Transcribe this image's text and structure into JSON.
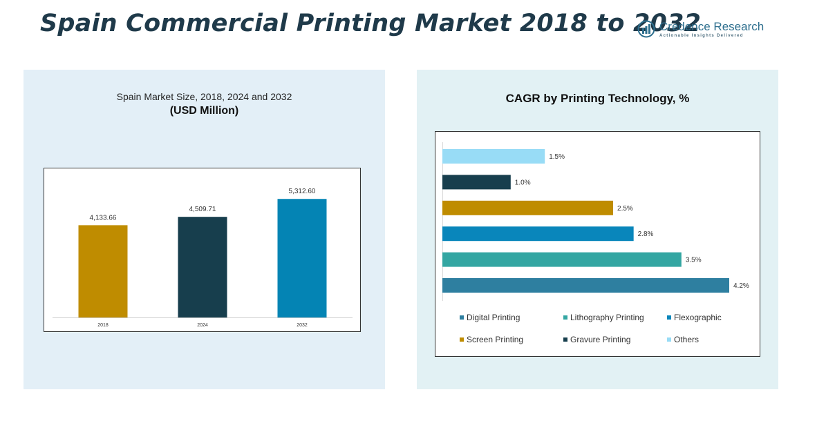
{
  "header": {
    "title": "Spain Commercial Printing Market 2018 to 2032",
    "brand_name": "Credence Research",
    "brand_tagline": "Actionable Insights Delivered"
  },
  "left_panel": {
    "subtitle": "Spain Market Size, 2018, 2024 and 2032",
    "unit": "(USD Million)"
  },
  "right_panel": {
    "title": "CAGR by Printing Technology, %"
  },
  "colors": {
    "title": "#1f3a4a",
    "bar_2018": "#bf8c00",
    "bar_2024": "#173e4d",
    "bar_2032": "#0484b4",
    "digital": "#2e7fa0",
    "lithography": "#33a6a2",
    "flexographic": "#0986bb",
    "screen": "#bf8c00",
    "gravure": "#173e4d",
    "others": "#98dcf6"
  },
  "chart_data": [
    {
      "type": "bar",
      "title": "Spain Market Size, 2018, 2024 and 2032",
      "ylabel": "(USD Million)",
      "categories": [
        "2018",
        "2024",
        "2032"
      ],
      "values": [
        4133.66,
        4509.71,
        5312.6
      ],
      "value_labels": [
        "4,133.66",
        "4,509.71",
        "5,312.60"
      ],
      "ylim": [
        0,
        6000
      ],
      "grid": false
    },
    {
      "type": "bar",
      "orientation": "horizontal",
      "title": "CAGR by Printing Technology, %",
      "categories": [
        "Others",
        "Gravure Printing",
        "Screen Printing",
        "Flexographic",
        "Lithography Printing",
        "Digital Printing"
      ],
      "values": [
        1.5,
        1.0,
        2.5,
        2.8,
        3.5,
        4.2
      ],
      "value_labels": [
        "1.5%",
        "1.0%",
        "2.5%",
        "2.8%",
        "3.5%",
        "4.2%"
      ],
      "xlim": [
        0,
        4.2
      ],
      "legend": [
        "Digital Printing",
        "Lithography Printing",
        "Flexographic",
        "Screen Printing",
        "Gravure Printing",
        "Others"
      ],
      "legend_position": "bottom",
      "grid": false
    }
  ]
}
